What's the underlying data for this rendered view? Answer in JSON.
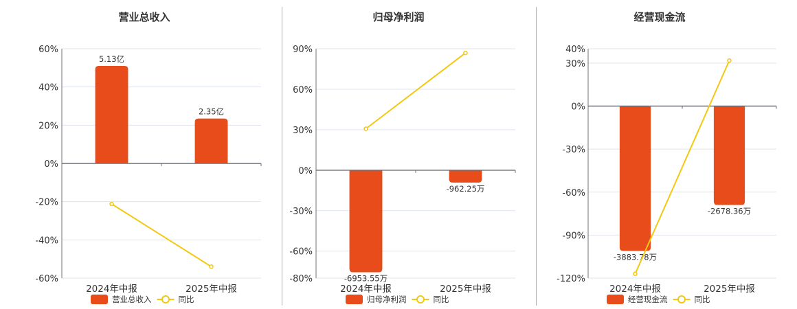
{
  "colors": {
    "bar": "#e84c1b",
    "line": "#f2c811",
    "grid": "#dde3ee",
    "axis": "#6e7079",
    "divider": "#b0b0b0"
  },
  "legend": {
    "line_label": "同比"
  },
  "chart_data": [
    {
      "type": "bar",
      "title": "营业总收入",
      "categories": [
        "2024年中报",
        "2025年中报"
      ],
      "series": [
        {
          "name": "营业总收入",
          "type": "bar",
          "values_pct": [
            51.0,
            23.5
          ],
          "labels": [
            "5.13亿",
            "2.35亿"
          ]
        },
        {
          "name": "同比",
          "type": "line",
          "values": [
            -21.2,
            -54.0
          ]
        }
      ],
      "yticks": [
        "60%",
        "40%",
        "20%",
        "0%",
        "-20%",
        "-40%",
        "-60%"
      ],
      "ylim": [
        -60,
        60
      ],
      "grid": true,
      "legend_position": "bottom"
    },
    {
      "type": "bar",
      "title": "归母净利润",
      "categories": [
        "2024年中报",
        "2025年中报"
      ],
      "series": [
        {
          "name": "归母净利润",
          "type": "bar",
          "values_pct": [
            -75.7,
            -9.2
          ],
          "labels": [
            "-6953.55万",
            "-962.25万"
          ]
        },
        {
          "name": "同比",
          "type": "line",
          "values": [
            30.7,
            86.9
          ]
        }
      ],
      "yticks": [
        "90%",
        "60%",
        "30%",
        "0%",
        "-30%",
        "-60%",
        "-80%"
      ],
      "ylim": [
        -80,
        90
      ],
      "grid": true,
      "legend_position": "bottom"
    },
    {
      "type": "bar",
      "title": "经营现金流",
      "categories": [
        "2024年中报",
        "2025年中报"
      ],
      "series": [
        {
          "name": "经营现金流",
          "type": "bar",
          "values_pct": [
            -101.0,
            -69.0
          ],
          "labels": [
            "-3883.78万",
            "-2678.36万"
          ]
        },
        {
          "name": "同比",
          "type": "line",
          "values": [
            -117.0,
            31.8
          ]
        }
      ],
      "yticks": [
        "40%",
        "30%",
        "0%",
        "-30%",
        "-60%",
        "-90%",
        "-120%"
      ],
      "ylim": [
        -120,
        40
      ],
      "grid": true,
      "legend_position": "bottom"
    }
  ]
}
